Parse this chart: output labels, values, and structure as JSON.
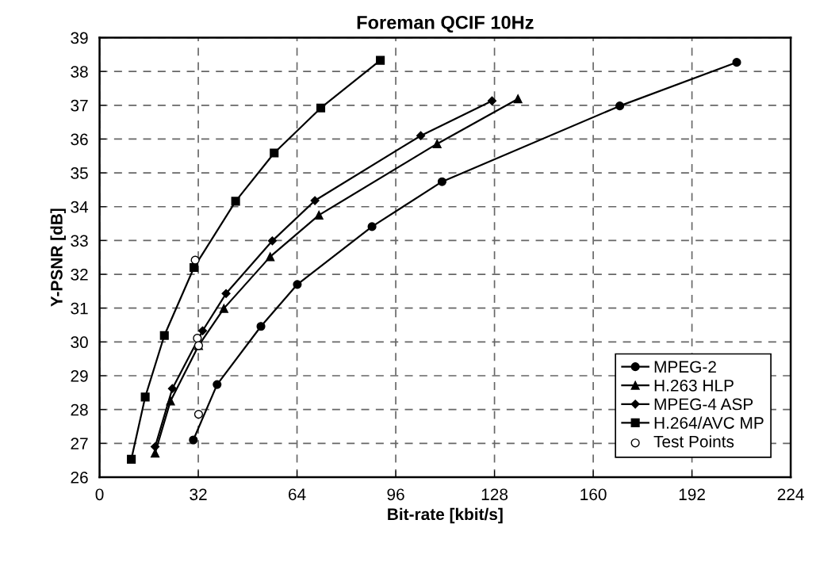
{
  "chart_data": {
    "type": "line",
    "title": "Foreman QCIF 10Hz",
    "xlabel": "Bit-rate [kbit/s]",
    "ylabel": "Y-PSNR [dB]",
    "xlim": [
      0,
      224
    ],
    "xticks": [
      0,
      32,
      64,
      96,
      128,
      160,
      192,
      224
    ],
    "ylim": [
      26,
      39
    ],
    "yticks": [
      26,
      27,
      28,
      29,
      30,
      31,
      32,
      33,
      34,
      35,
      36,
      37,
      38,
      39
    ],
    "grid": true,
    "legend": "bottom right",
    "series": [
      {
        "name": "MPEG-2",
        "color": "#000000",
        "marker": "circle",
        "x": [
          30.4,
          38.1,
          52.3,
          64.1,
          88.3,
          111.0,
          168.6,
          206.5
        ],
        "values": [
          27.1,
          28.74,
          30.46,
          31.7,
          33.41,
          34.74,
          36.98,
          38.27
        ]
      },
      {
        "name": "H.263 HLP",
        "color": "#000000",
        "marker": "triangle",
        "x": [
          18.0,
          23.0,
          32.1,
          40.3,
          55.3,
          71.1,
          109.4,
          135.6
        ],
        "values": [
          26.71,
          28.25,
          29.89,
          30.99,
          32.52,
          33.75,
          35.86,
          37.19
        ]
      },
      {
        "name": "MPEG-4 ASP",
        "color": "#000000",
        "marker": "diamond",
        "x": [
          18.0,
          23.6,
          33.4,
          41.0,
          56.0,
          69.8,
          104.1,
          127.2
        ],
        "values": [
          26.9,
          28.62,
          30.33,
          31.43,
          32.99,
          34.18,
          36.1,
          37.13
        ]
      },
      {
        "name": "H.264/AVC MP",
        "color": "#000000",
        "marker": "square",
        "x": [
          10.3,
          14.8,
          21.0,
          30.6,
          44.1,
          56.6,
          71.7,
          91.0
        ],
        "values": [
          26.53,
          28.37,
          30.19,
          32.2,
          34.16,
          35.59,
          36.92,
          38.33
        ]
      },
      {
        "name": "Test Points",
        "type": "scatter",
        "color": "#000000",
        "marker": "circle",
        "x": [
          31.0,
          31.7,
          32.1,
          32.1
        ],
        "values": [
          32.42,
          30.11,
          29.89,
          27.86
        ]
      }
    ]
  }
}
